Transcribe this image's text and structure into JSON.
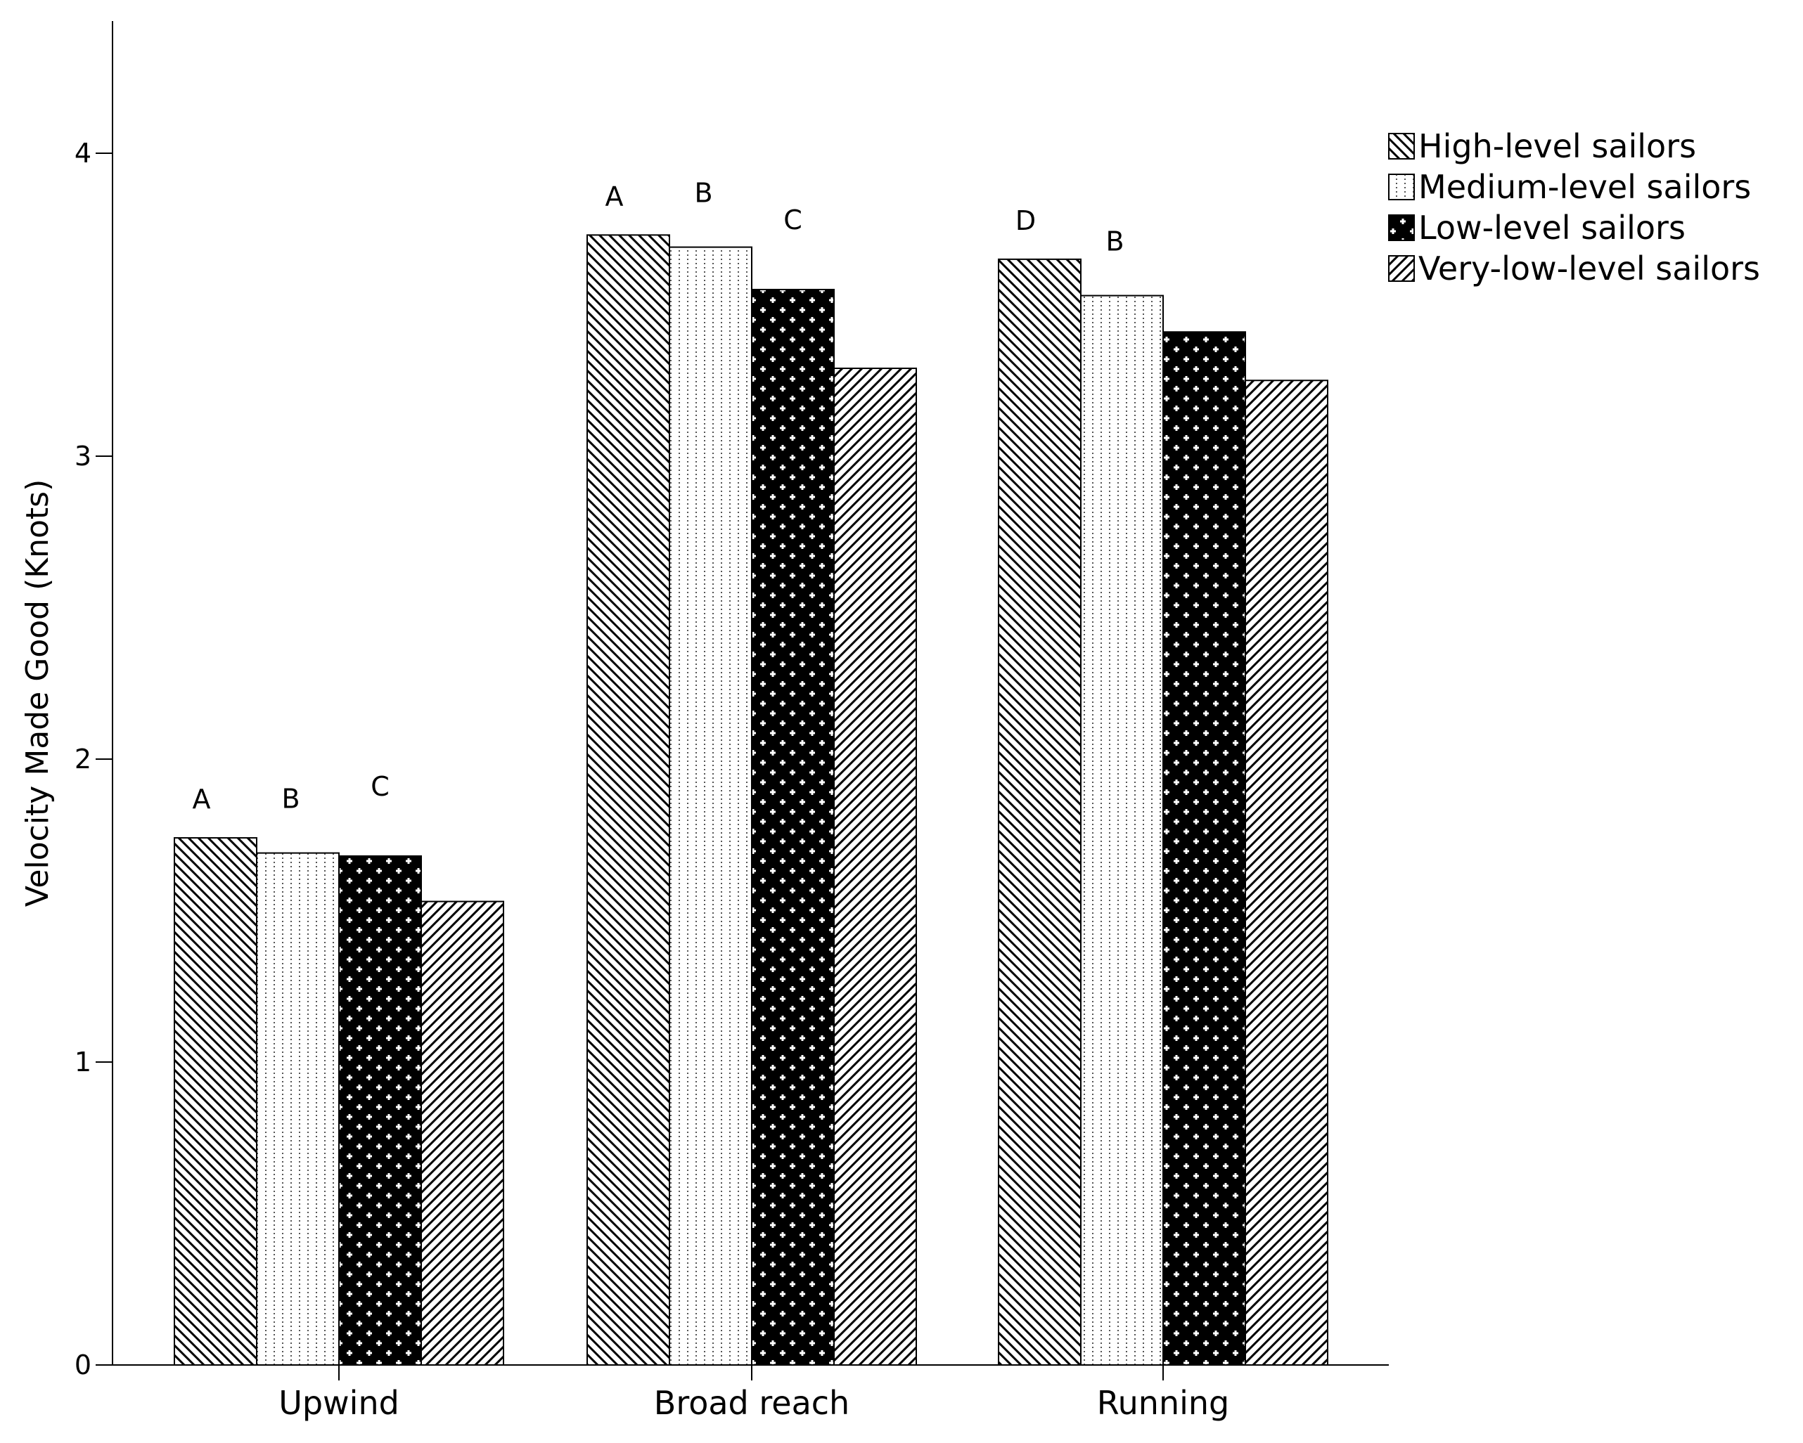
{
  "chart_data": {
    "type": "bar",
    "title": "",
    "xlabel": "",
    "ylabel": "Velocity Made Good (Knots)",
    "ylim": [
      0,
      4.4
    ],
    "yticks": [
      "0",
      "1",
      "2",
      "3",
      "4"
    ],
    "grid": false,
    "legend_position": "top-right",
    "categories": [
      "Upwind",
      "Broad reach",
      "Running"
    ],
    "series": [
      {
        "name": "High-level sailors",
        "pattern": "backslash-hatch",
        "values": [
          1.74,
          3.73,
          3.65
        ]
      },
      {
        "name": "Medium-level sailors",
        "pattern": "dotted",
        "values": [
          1.69,
          3.69,
          3.53
        ]
      },
      {
        "name": "Low-level sailors",
        "pattern": "cross-grid",
        "values": [
          1.68,
          3.55,
          3.41
        ]
      },
      {
        "name": "Very-low-level sailors",
        "pattern": "slash-hatch",
        "values": [
          1.53,
          3.29,
          3.25
        ]
      }
    ],
    "annotations": [
      {
        "category": 0,
        "series": 0,
        "text": "A"
      },
      {
        "category": 0,
        "series": 1,
        "text": "B"
      },
      {
        "category": 0,
        "series": 2,
        "text": "C"
      },
      {
        "category": 1,
        "series": 0,
        "text": "A"
      },
      {
        "category": 1,
        "series": 1,
        "text": "B"
      },
      {
        "category": 1,
        "series": 2,
        "text": "C"
      },
      {
        "category": 2,
        "series": 0,
        "text": "D"
      },
      {
        "category": 2,
        "series": 1,
        "text": "B"
      }
    ]
  }
}
